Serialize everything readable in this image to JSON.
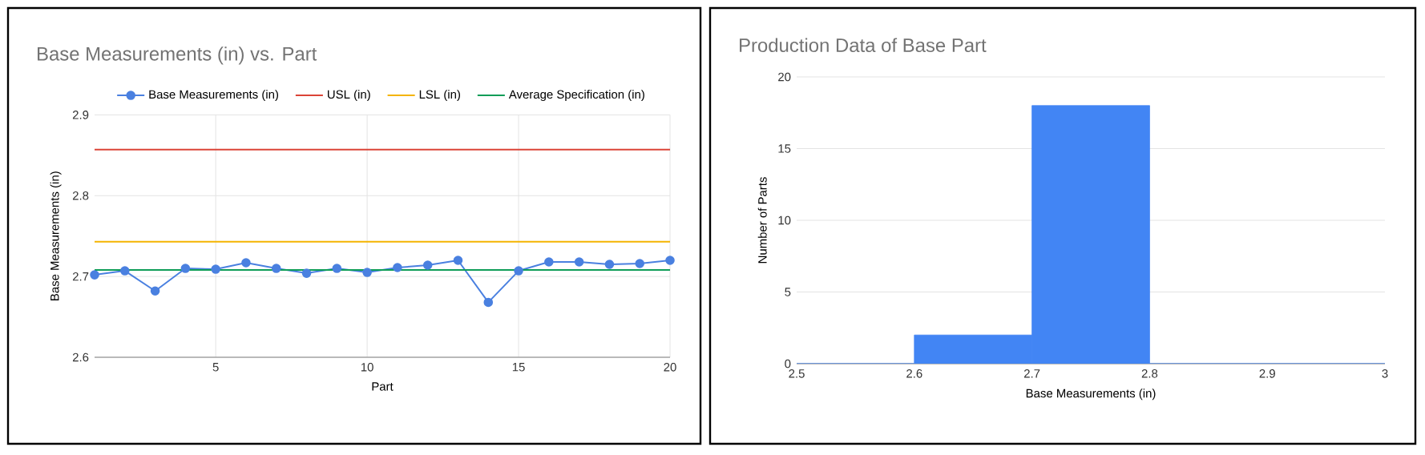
{
  "chart_data": [
    {
      "type": "line",
      "title": "Base Measurements (in) vs. Part",
      "xlabel": "Part",
      "ylabel": "Base Measurements (in)",
      "xlim": [
        1,
        20
      ],
      "xticks": [
        5,
        10,
        15,
        20
      ],
      "ylim": [
        2.6,
        2.9
      ],
      "yticks": [
        2.6,
        2.7,
        2.8,
        2.9
      ],
      "grid": true,
      "legend": "top",
      "line_style": "solid",
      "series": [
        {
          "name": "Base Measurements (in)",
          "color": "#4a80e0",
          "marker": "circle",
          "x": [
            1,
            2,
            3,
            4,
            5,
            6,
            7,
            8,
            9,
            10,
            11,
            12,
            13,
            14,
            15,
            16,
            17,
            18,
            19,
            20
          ],
          "values": [
            2.702,
            2.707,
            2.682,
            2.71,
            2.709,
            2.717,
            2.71,
            2.704,
            2.71,
            2.705,
            2.711,
            2.714,
            2.72,
            2.668,
            2.707,
            2.718,
            2.718,
            2.715,
            2.716,
            2.72
          ]
        },
        {
          "name": "USL (in)",
          "color": "#db4437",
          "marker": "none",
          "x": [
            1,
            20
          ],
          "values": [
            2.857,
            2.857
          ]
        },
        {
          "name": "LSL (in)",
          "color": "#f4b400",
          "marker": "none",
          "x": [
            1,
            20
          ],
          "values": [
            2.743,
            2.743
          ]
        },
        {
          "name": "Average Specification (in)",
          "color": "#0f9d58",
          "marker": "none",
          "x": [
            1,
            20
          ],
          "values": [
            2.708,
            2.708
          ]
        }
      ]
    },
    {
      "type": "histogram",
      "title": "Production Data of Base Part",
      "xlabel": "Base Measurements (in)",
      "ylabel": "Number of Parts",
      "bins": [
        2.5,
        2.6,
        2.7,
        2.8,
        2.9,
        3.0
      ],
      "values": [
        0,
        2,
        18,
        0,
        0
      ],
      "color": "#4285f4",
      "xlim": [
        2.5,
        3
      ],
      "xticks": [
        2.5,
        2.6,
        2.7,
        2.8,
        2.9,
        3
      ],
      "ylim": [
        0,
        20
      ],
      "yticks": [
        0,
        5,
        10,
        15,
        20
      ],
      "grid": "y",
      "legend": false
    }
  ]
}
